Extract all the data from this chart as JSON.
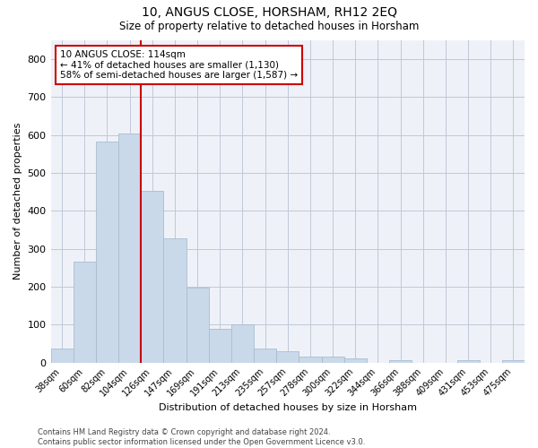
{
  "title1": "10, ANGUS CLOSE, HORSHAM, RH12 2EQ",
  "title2": "Size of property relative to detached houses in Horsham",
  "xlabel": "Distribution of detached houses by size in Horsham",
  "ylabel": "Number of detached properties",
  "categories": [
    "38sqm",
    "60sqm",
    "82sqm",
    "104sqm",
    "126sqm",
    "147sqm",
    "169sqm",
    "191sqm",
    "213sqm",
    "235sqm",
    "257sqm",
    "278sqm",
    "300sqm",
    "322sqm",
    "344sqm",
    "366sqm",
    "388sqm",
    "409sqm",
    "431sqm",
    "453sqm",
    "475sqm"
  ],
  "values": [
    38,
    265,
    583,
    603,
    452,
    328,
    197,
    90,
    100,
    38,
    30,
    15,
    15,
    10,
    0,
    7,
    0,
    0,
    5,
    0,
    7
  ],
  "bar_color": "#c9d9ea",
  "bar_edge_color": "#a8bdd0",
  "vline_color": "#cc0000",
  "annotation_text": "10 ANGUS CLOSE: 114sqm\n← 41% of detached houses are smaller (1,130)\n58% of semi-detached houses are larger (1,587) →",
  "annotation_box_color": "#ffffff",
  "annotation_box_edge": "#cc0000",
  "footer": "Contains HM Land Registry data © Crown copyright and database right 2024.\nContains public sector information licensed under the Open Government Licence v3.0.",
  "ylim": [
    0,
    850
  ],
  "yticks": [
    0,
    100,
    200,
    300,
    400,
    500,
    600,
    700,
    800
  ],
  "grid_color": "#c0c8d8",
  "background_color": "#eef2f8"
}
